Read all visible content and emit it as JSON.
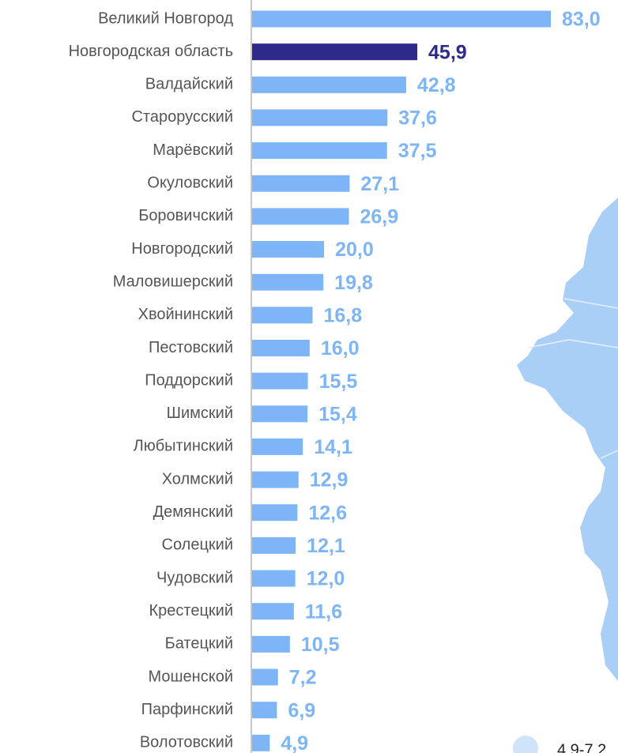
{
  "chart_data": {
    "type": "hbar",
    "categories": [
      "Великий Новгород",
      "Новгородская область",
      "Валдайский",
      "Старорусский",
      "Марёвский",
      "Окуловский",
      "Боровичский",
      "Новгородский",
      "Маловишерский",
      "Хвойнинский",
      "Пестовский",
      "Поддорский",
      "Шимский",
      "Любытинский",
      "Холмский",
      "Демянский",
      "Солецкий",
      "Чудовский",
      "Крестецкий",
      "Батецкий",
      "Мошенской",
      "Парфинский",
      "Волотовский"
    ],
    "values": [
      83.0,
      45.9,
      42.8,
      37.6,
      37.5,
      27.1,
      26.9,
      20.0,
      19.8,
      16.8,
      16.0,
      15.5,
      15.4,
      14.1,
      12.9,
      12.6,
      12.1,
      12.0,
      11.6,
      10.5,
      7.2,
      6.9,
      4.9
    ],
    "value_labels": [
      "83,0",
      "45,9",
      "42,8",
      "37,6",
      "37,5",
      "27,1",
      "26,9",
      "20,0",
      "19,8",
      "16,8",
      "16,0",
      "15,5",
      "15,4",
      "14,1",
      "12,9",
      "12,6",
      "12,1",
      "12,0",
      "11,6",
      "10,5",
      "7,2",
      "6,9",
      "4,9"
    ],
    "colors": [
      "#7db5f6",
      "#2e2a8c",
      "#7db5f6",
      "#7db5f6",
      "#7db5f6",
      "#7db5f6",
      "#7db5f6",
      "#7db5f6",
      "#7db5f6",
      "#7db5f6",
      "#7db5f6",
      "#7db5f6",
      "#7db5f6",
      "#7db5f6",
      "#7db5f6",
      "#7db5f6",
      "#7db5f6",
      "#7db5f6",
      "#7db5f6",
      "#7db5f6",
      "#7db5f6",
      "#7db5f6",
      "#7db5f6"
    ],
    "map_legend": [
      "4,9-7,2"
    ]
  }
}
